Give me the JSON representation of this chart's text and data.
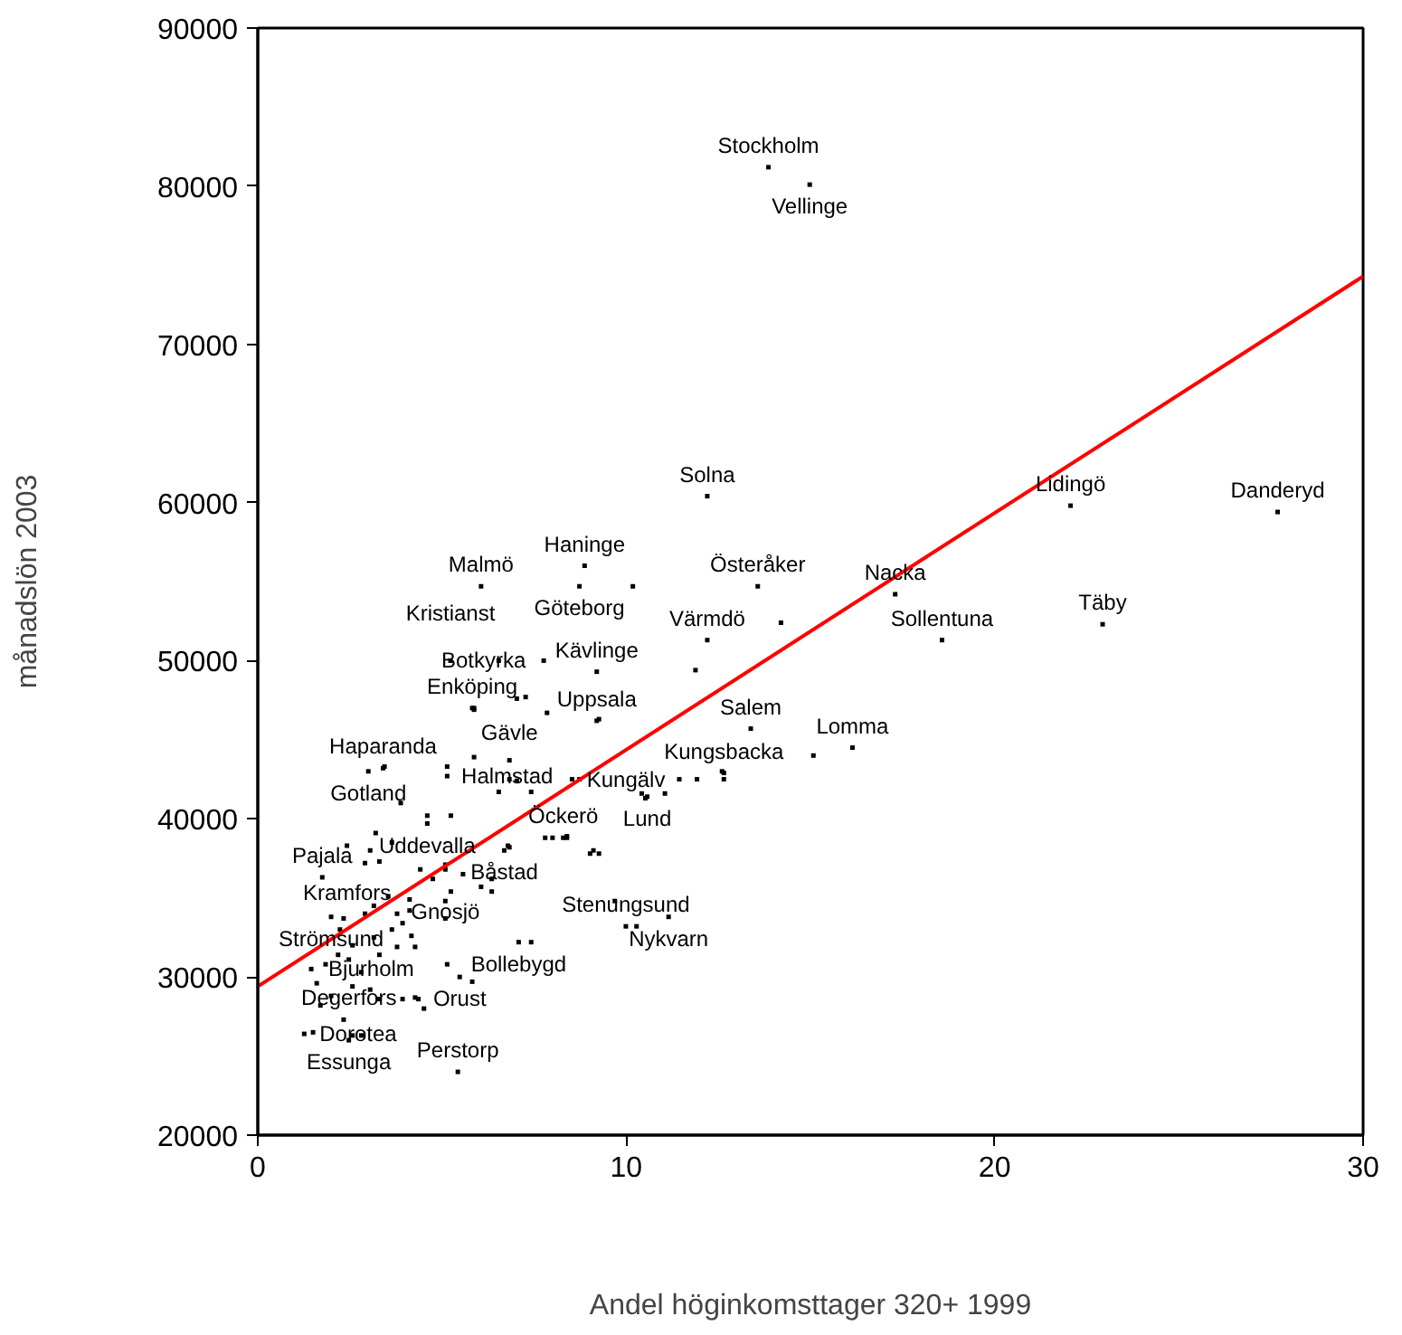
{
  "chart_data": {
    "type": "scatter",
    "xlabel": "Andel höginkomsttager 320+ 1999",
    "ylabel": "månadslön 2003",
    "xlim": [
      0,
      30
    ],
    "xticks": [
      0,
      10,
      20,
      30
    ],
    "ylim": [
      20000,
      90000
    ],
    "yticks": [
      20000,
      30000,
      40000,
      50000,
      60000,
      70000,
      80000,
      90000
    ],
    "grid": false,
    "series": [
      {
        "marker": "square",
        "color": "#000000",
        "x": [
          13.86,
          14.98,
          12.2,
          8.87,
          6.06,
          8.73,
          13.57,
          12.2,
          17.3,
          18.57,
          22.06,
          27.68,
          22.93,
          16.14,
          13.38,
          12.65,
          10.57,
          9.2,
          9.2,
          7.76,
          5.23,
          5.82,
          3.4,
          3.0,
          5.14,
          6.83,
          8.53,
          4.6,
          2.42,
          6.69,
          8.29,
          5.09,
          1.75,
          1.99,
          7.08,
          9.99,
          11.15,
          1.45,
          5.48,
          4.27,
          1.26,
          2.47,
          5.43,
          5.87,
          7.27,
          7.85,
          9.26,
          3.44,
          5.14,
          5.87,
          6.83,
          7.03,
          7.42,
          6.54,
          3.88,
          4.6,
          5.24,
          6.79,
          7.8,
          8.39,
          9.11,
          3.2,
          3.64,
          3.05,
          3.3,
          2.91,
          4.41,
          4.75,
          5.09,
          5.57,
          6.35,
          6.06,
          6.35,
          5.24,
          4.12,
          3.54,
          3.15,
          2.91,
          2.33,
          2.23,
          3.78,
          4.12,
          3.93,
          3.64,
          4.17,
          5.09,
          5.09,
          7.42,
          3.15,
          2.57,
          3.3,
          3.78,
          4.27,
          1.84,
          2.18,
          2.47,
          2.81,
          5.14,
          5.82,
          1.6,
          2.57,
          3.05,
          3.93,
          4.36,
          4.51,
          1.99,
          1.7,
          1.5,
          2.33,
          2.57,
          2.81,
          3.3,
          6.83,
          8.0,
          8.39,
          9.02,
          9.26,
          9.69,
          10.28,
          10.42,
          10.52,
          11.05,
          11.44,
          11.92,
          12.65,
          12.6,
          11.88,
          14.2,
          10.18,
          15.08,
          8.73,
          7.03,
          5.87,
          6.54
        ],
        "values": [
          81200,
          80100,
          60400,
          56000,
          54700,
          54700,
          54700,
          51300,
          54200,
          51300,
          59800,
          59400,
          52300,
          44500,
          45700,
          42900,
          41400,
          46200,
          49300,
          50000,
          50000,
          47000,
          43200,
          43000,
          42700,
          42500,
          42500,
          39700,
          38300,
          38000,
          38800,
          37100,
          36300,
          33800,
          32200,
          33200,
          33800,
          30500,
          30000,
          28700,
          26400,
          26000,
          24000,
          46900,
          47700,
          46700,
          46300,
          43300,
          43300,
          43900,
          43700,
          42400,
          41700,
          41700,
          41000,
          40200,
          40200,
          38300,
          38800,
          38900,
          38000,
          39100,
          38500,
          38000,
          37300,
          37200,
          36800,
          36200,
          36800,
          36500,
          36200,
          35700,
          35400,
          35400,
          34900,
          35100,
          34500,
          34000,
          33700,
          33000,
          34000,
          34200,
          33400,
          33000,
          32600,
          34800,
          33700,
          32200,
          32500,
          32000,
          31400,
          31900,
          31900,
          30800,
          31400,
          31100,
          30300,
          30800,
          29700,
          29600,
          29400,
          29200,
          28600,
          28600,
          28000,
          28800,
          28200,
          26500,
          27300,
          26300,
          26300,
          28600,
          38200,
          38800,
          38800,
          37800,
          37800,
          34800,
          33200,
          41600,
          41300,
          41600,
          42500,
          42500,
          42500,
          43000,
          49400,
          52400,
          54700,
          44000,
          42500,
          47600,
          47000,
          50000
        ]
      },
      {
        "type": "line",
        "color": "#ff0000",
        "x": [
          0,
          30
        ],
        "values": [
          29400,
          74300
        ]
      }
    ],
    "annotations": [
      {
        "text": "Stockholm",
        "x": 13.86,
        "y": 81200
      },
      {
        "text": "Vellinge",
        "x": 14.98,
        "y": 80100
      },
      {
        "text": "Solna",
        "x": 12.2,
        "y": 60400
      },
      {
        "text": "Haninge",
        "x": 8.87,
        "y": 56000
      },
      {
        "text": "Malmö",
        "x": 6.06,
        "y": 54700
      },
      {
        "text": "Göteborg",
        "x": 8.73,
        "y": 54700
      },
      {
        "text": "Österåker",
        "x": 13.57,
        "y": 54700
      },
      {
        "text": "Värmdö",
        "x": 12.2,
        "y": 51300
      },
      {
        "text": "Nacka",
        "x": 17.3,
        "y": 54200
      },
      {
        "text": "Sollentuna",
        "x": 18.57,
        "y": 51300
      },
      {
        "text": "Lidingö",
        "x": 22.06,
        "y": 59800
      },
      {
        "text": "Danderyd",
        "x": 27.68,
        "y": 59400
      },
      {
        "text": "Täby",
        "x": 22.93,
        "y": 52300
      },
      {
        "text": "Lomma",
        "x": 16.14,
        "y": 44500
      },
      {
        "text": "Salem",
        "x": 13.38,
        "y": 45700
      },
      {
        "text": "Kungsbacka",
        "x": 12.65,
        "y": 42900
      },
      {
        "text": "Lund",
        "x": 10.57,
        "y": 41400
      },
      {
        "text": "Uppsala",
        "x": 9.2,
        "y": 46200
      },
      {
        "text": "Kävlinge",
        "x": 9.2,
        "y": 49300
      },
      {
        "text": "Botkyrka",
        "x": 7.76,
        "y": 50000
      },
      {
        "text": "Kristianst",
        "x": 5.23,
        "y": 50000
      },
      {
        "text": "Enköping",
        "x": 5.82,
        "y": 47000
      },
      {
        "text": "Haparanda",
        "x": 3.4,
        "y": 43200
      },
      {
        "text": "Gotland",
        "x": 3.0,
        "y": 43000
      },
      {
        "text": "Halmstad",
        "x": 5.14,
        "y": 42700
      },
      {
        "text": "Gävle",
        "x": 6.83,
        "y": 42500
      },
      {
        "text": "Kungälv",
        "x": 8.53,
        "y": 42500
      },
      {
        "text": "Uddevalla",
        "x": 4.6,
        "y": 39700
      },
      {
        "text": "Kramfors",
        "x": 2.42,
        "y": 38300
      },
      {
        "text": "Båstad",
        "x": 6.69,
        "y": 38000
      },
      {
        "text": "Öckerö",
        "x": 8.29,
        "y": 38800
      },
      {
        "text": "Gnosjö",
        "x": 5.09,
        "y": 37100
      },
      {
        "text": "Pajala",
        "x": 1.75,
        "y": 36300
      },
      {
        "text": "Strömsund",
        "x": 1.99,
        "y": 33800
      },
      {
        "text": "Bollebygd",
        "x": 7.08,
        "y": 32200
      },
      {
        "text": "Stenungsund",
        "x": 9.99,
        "y": 33200
      },
      {
        "text": "Nykvarn",
        "x": 11.15,
        "y": 33800
      },
      {
        "text": "Bjurholm",
        "x": 1.45,
        "y": 30500
      },
      {
        "text": "Orust",
        "x": 5.48,
        "y": 30000
      },
      {
        "text": "Degerfors",
        "x": 4.27,
        "y": 28700
      },
      {
        "text": "Dorotea",
        "x": 1.26,
        "y": 26400
      },
      {
        "text": "Essunga",
        "x": 2.47,
        "y": 26000
      },
      {
        "text": "Perstorp",
        "x": 5.43,
        "y": 24000
      }
    ]
  }
}
